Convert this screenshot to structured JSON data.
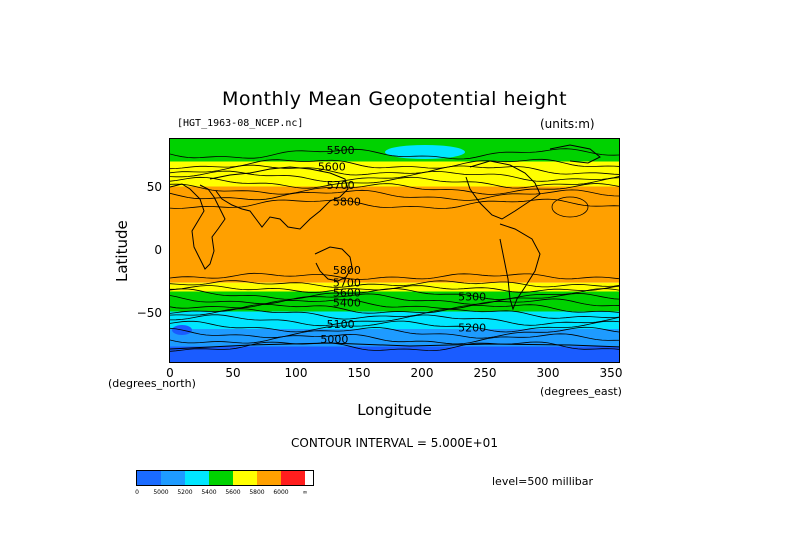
{
  "title": "Monthly Mean Geopotential height",
  "file_label": "[HGT_1963-08_NCEP.nc]",
  "units_label": "(units:m)",
  "y_axis": {
    "label": "Latitude",
    "ticks": [
      "50",
      "0",
      "−50"
    ],
    "tick_values": [
      50,
      0,
      -50
    ]
  },
  "x_axis": {
    "label": "Longitude",
    "unit_left": "(degrees_north)",
    "unit_right": "(degrees_east)",
    "ticks": [
      "0",
      "50",
      "100",
      "150",
      "200",
      "250",
      "300",
      "350"
    ],
    "tick_values": [
      0,
      50,
      100,
      150,
      200,
      250,
      300,
      350
    ]
  },
  "contour_interval": "CONTOUR INTERVAL = 5.000E+01",
  "level": "level=500 millibar",
  "contour_labels": [
    {
      "text": "5500",
      "lon": 125,
      "lat": 78
    },
    {
      "text": "5600",
      "lon": 118,
      "lat": 65
    },
    {
      "text": "5700",
      "lon": 125,
      "lat": 50
    },
    {
      "text": "5800",
      "lon": 130,
      "lat": 37
    },
    {
      "text": "5800",
      "lon": 130,
      "lat": -18
    },
    {
      "text": "5700",
      "lon": 130,
      "lat": -28
    },
    {
      "text": "5600",
      "lon": 130,
      "lat": -36
    },
    {
      "text": "5400",
      "lon": 130,
      "lat": -44
    },
    {
      "text": "5300",
      "lon": 230,
      "lat": -39
    },
    {
      "text": "5100",
      "lon": 125,
      "lat": -61
    },
    {
      "text": "5200",
      "lon": 230,
      "lat": -64
    },
    {
      "text": "5000",
      "lon": 120,
      "lat": -73
    }
  ],
  "colorbar": {
    "colors": [
      "#1a6bff",
      "#1e9bff",
      "#00e6ff",
      "#00d200",
      "#ffff00",
      "#ffa000",
      "#ff1e1e",
      "#ffffff"
    ],
    "labels": [
      "0",
      "5000",
      "5200",
      "5400",
      "5600",
      "5800",
      "6000",
      "∞"
    ]
  },
  "colors": {
    "blue_dark": "#1a5cff",
    "blue": "#1e9bff",
    "cyan": "#00e6ff",
    "green": "#00d200",
    "yellow": "#ffff00",
    "orange": "#ffa000"
  }
}
